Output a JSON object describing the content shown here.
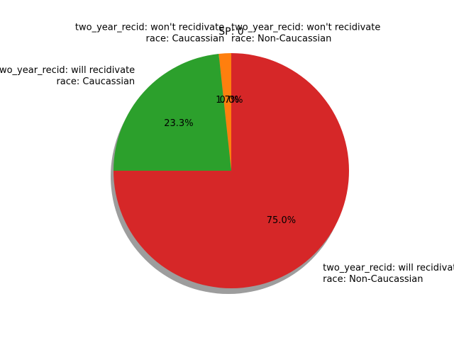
{
  "chart_data": {
    "type": "pie",
    "title": "SP: 0",
    "shadow": true,
    "start_angle_deg": 90,
    "counterclockwise": true,
    "slices": [
      {
        "label_lines": [
          "two_year_recid: won't recidivate",
          "race: Non-Caucassian"
        ],
        "value": 0.0,
        "pct_label": "0.0%",
        "color": "#1f77b4"
      },
      {
        "label_lines": [
          "two_year_recid: won't recidivate",
          "race: Caucassian"
        ],
        "value": 1.7,
        "pct_label": "1.7%",
        "color": "#ff7f0e"
      },
      {
        "label_lines": [
          "two_year_recid: will recidivate",
          "race: Caucassian"
        ],
        "value": 23.3,
        "pct_label": "23.3%",
        "color": "#2ca02c"
      },
      {
        "label_lines": [
          "two_year_recid: will recidivate",
          "race: Non-Caucassian"
        ],
        "value": 75.0,
        "pct_label": "75.0%",
        "color": "#d62728"
      }
    ]
  }
}
